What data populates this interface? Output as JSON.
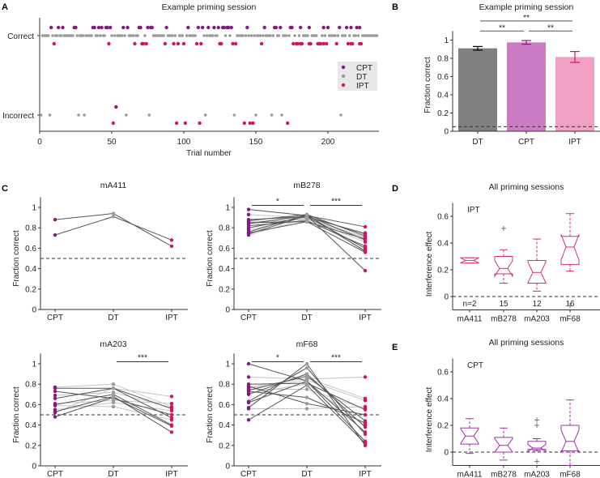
{
  "colors": {
    "CPT": "#86197f",
    "DT": "#9b9b9b",
    "IPT": "#d3145f",
    "bar_DT": "#808080",
    "bar_CPT": "#cc7cc4",
    "bar_IPT": "#f0a0c2",
    "box_IPT": "#d2336d",
    "box_CPT": "#9b33a3",
    "line_dark": "#555555",
    "line_light": "#c4c4c4"
  },
  "panel_labels": [
    "A",
    "B",
    "C",
    "D",
    "E"
  ],
  "chart_data": [
    {
      "panel": "A",
      "type": "scatter",
      "title": "Example priming session",
      "xlabel": "Trial number",
      "xlim": [
        0,
        234
      ],
      "xticks": [
        0,
        50,
        100,
        150,
        200
      ],
      "yticks": [
        "Correct",
        "Incorrect"
      ],
      "legend": [
        "CPT",
        "DT",
        "IPT"
      ],
      "legend_position": "right",
      "n_trials": 234,
      "correct": {
        "CPT": [
          8,
          13,
          16,
          24,
          25,
          37,
          38,
          41,
          43,
          46,
          47,
          49,
          58,
          61,
          69,
          70,
          75,
          77,
          78,
          88,
          103,
          110,
          113,
          117,
          121,
          124,
          127,
          128,
          130,
          131,
          133,
          144,
          156,
          163,
          164,
          167,
          174,
          175,
          181,
          187,
          197,
          200,
          208,
          213,
          216,
          220,
          222
        ],
        "IPT": [
          10,
          48,
          66,
          71,
          72,
          74,
          87,
          93,
          96,
          100,
          109,
          112,
          125,
          126,
          134,
          136,
          154,
          176,
          178,
          179,
          181,
          182,
          187,
          188,
          193,
          194,
          195,
          197,
          199,
          206,
          214,
          216,
          217,
          222,
          223
        ],
        "DT": "all remaining trials"
      },
      "incorrect": {
        "CPT": [
          53
        ],
        "DT": [
          1,
          7,
          27,
          31,
          60,
          76,
          115,
          135,
          150,
          161,
          168,
          209
        ],
        "IPT": [
          51,
          95,
          101,
          111,
          142,
          146,
          148,
          172
        ]
      }
    },
    {
      "panel": "B",
      "type": "bar",
      "title": "Example priming session",
      "ylabel": "Fraction correct",
      "ylim": [
        0,
        1.1
      ],
      "yticks": [
        0,
        0.2,
        0.4,
        0.6,
        0.8,
        1
      ],
      "categories": [
        "DT",
        "CPT",
        "IPT"
      ],
      "values": [
        0.91,
        0.975,
        0.815
      ],
      "errors": [
        0.02,
        0.02,
        0.06
      ],
      "chance_line": 0.05,
      "significance": [
        {
          "pair": [
            "DT",
            "IPT"
          ],
          "label": "**",
          "level": 1.21
        },
        {
          "pair": [
            "DT",
            "CPT"
          ],
          "label": "**",
          "level": 1.1
        },
        {
          "pair": [
            "CPT",
            "IPT"
          ],
          "label": "**",
          "level": 1.1
        }
      ]
    },
    {
      "panel": "C",
      "type": "line",
      "ylabel": "Fraction correct",
      "ylim": [
        0,
        1.1
      ],
      "yticks": [
        0,
        0.2,
        0.4,
        0.6,
        0.8,
        1
      ],
      "categories": [
        "CPT",
        "DT",
        "IPT"
      ],
      "chance_line": 0.5,
      "subplots": [
        {
          "title": "mA411",
          "significance": [],
          "CPT": [
            0.88,
            0.73
          ],
          "DT": [
            0.94,
            0.91
          ],
          "IPT": [
            0.62,
            0.68
          ],
          "dark": [
            true,
            true
          ]
        },
        {
          "title": "mB278",
          "significance": [
            {
              "pair": [
                "CPT",
                "DT"
              ],
              "label": "*",
              "level": 1.02
            },
            {
              "pair": [
                "DT",
                "IPT"
              ],
              "label": "***",
              "level": 1.02
            }
          ],
          "CPT": [
            0.98,
            0.93,
            0.88,
            0.87,
            0.86,
            0.85,
            0.84,
            0.84,
            0.82,
            0.8,
            0.78,
            0.76,
            0.75,
            0.74,
            0.73
          ],
          "DT": [
            0.92,
            0.9,
            0.91,
            0.93,
            0.88,
            0.86,
            0.92,
            0.89,
            0.87,
            0.91,
            0.9,
            0.93,
            0.86,
            0.92,
            0.89
          ],
          "IPT": [
            0.81,
            0.75,
            0.74,
            0.72,
            0.7,
            0.69,
            0.68,
            0.66,
            0.62,
            0.6,
            0.58,
            0.57,
            0.56,
            0.38,
            0.71
          ],
          "dark": [
            true,
            false,
            true,
            true,
            false,
            true,
            true,
            false,
            true,
            true,
            false,
            true,
            true,
            true,
            false
          ]
        },
        {
          "title": "mA203",
          "significance": [
            {
              "pair": [
                "DT",
                "IPT"
              ],
              "label": "***",
              "level": 1.02
            }
          ],
          "CPT": [
            0.77,
            0.76,
            0.73,
            0.69,
            0.66,
            0.61,
            0.6,
            0.59,
            0.55,
            0.53,
            0.52,
            0.48
          ],
          "DT": [
            0.8,
            0.76,
            0.66,
            0.72,
            0.76,
            0.64,
            0.7,
            0.58,
            0.62,
            0.68,
            0.76,
            0.67
          ],
          "IPT": [
            0.58,
            0.47,
            0.5,
            0.57,
            0.56,
            0.61,
            0.4,
            0.45,
            0.54,
            0.33,
            0.68,
            0.39
          ],
          "dark": [
            false,
            true,
            true,
            false,
            true,
            false,
            true,
            false,
            false,
            true,
            false,
            true
          ]
        },
        {
          "title": "mF68",
          "significance": [
            {
              "pair": [
                "CPT",
                "DT"
              ],
              "label": "*",
              "level": 1.02
            },
            {
              "pair": [
                "DT",
                "IPT"
              ],
              "label": "***",
              "level": 1.02
            }
          ],
          "CPT": [
            1.0,
            0.87,
            0.8,
            0.78,
            0.76,
            0.75,
            0.74,
            0.73,
            0.71,
            0.7,
            0.63,
            0.62,
            0.57,
            0.56,
            0.45,
            0.77
          ],
          "DT": [
            0.83,
            0.85,
            0.81,
            0.61,
            0.84,
            0.75,
            0.88,
            0.67,
            0.8,
            0.9,
            0.96,
            0.83,
            1.0,
            0.56,
            0.79,
            0.86
          ],
          "IPT": [
            0.33,
            0.87,
            0.55,
            0.5,
            0.64,
            0.56,
            0.44,
            0.42,
            0.4,
            0.38,
            0.31,
            0.24,
            0.2,
            0.58,
            0.22,
            0.66
          ],
          "dark": [
            true,
            false,
            true,
            true,
            false,
            false,
            true,
            true,
            false,
            true,
            true,
            true,
            true,
            false,
            true,
            false
          ]
        }
      ]
    },
    {
      "panel": "D",
      "type": "box",
      "title": "All priming sessions",
      "label": "IPT",
      "ylabel": "Interference effect",
      "ylim": [
        -0.1,
        0.7
      ],
      "yticks": [
        0,
        0.2,
        0.4,
        0.6
      ],
      "zero_line": 0,
      "categories": [
        "mA411",
        "mB278",
        "mA203",
        "mF68"
      ],
      "n_labels": [
        "n=2",
        "15",
        "12",
        "16"
      ],
      "boxes": [
        {
          "q1": 0.25,
          "median": 0.27,
          "q3": 0.29,
          "whisker_low": 0.25,
          "whisker_high": 0.29,
          "outliers": []
        },
        {
          "q1": 0.17,
          "median": 0.21,
          "q3": 0.3,
          "whisker_low": 0.1,
          "whisker_high": 0.35,
          "outliers": [
            0.51
          ]
        },
        {
          "q1": 0.1,
          "median": 0.18,
          "q3": 0.27,
          "whisker_low": 0.04,
          "whisker_high": 0.43,
          "outliers": []
        },
        {
          "q1": 0.24,
          "median": 0.37,
          "q3": 0.45,
          "whisker_low": 0.19,
          "whisker_high": 0.62,
          "outliers": [
            -0.07
          ]
        }
      ]
    },
    {
      "panel": "E",
      "type": "box",
      "title": "All priming sessions",
      "label": "CPT",
      "ylabel": "Interference effect",
      "ylim": [
        -0.1,
        0.7
      ],
      "yticks": [
        0,
        0.2,
        0.4,
        0.6
      ],
      "zero_line": 0,
      "categories": [
        "mA411",
        "mB278",
        "mA203",
        "mF68"
      ],
      "boxes": [
        {
          "q1": 0.06,
          "median": 0.12,
          "q3": 0.18,
          "whisker_low": -0.01,
          "whisker_high": 0.25,
          "outliers": []
        },
        {
          "q1": 0.0,
          "median": 0.05,
          "q3": 0.11,
          "whisker_low": -0.06,
          "whisker_high": 0.18,
          "outliers": []
        },
        {
          "q1": 0.02,
          "median": 0.03,
          "q3": 0.08,
          "whisker_low": 0.01,
          "whisker_high": 0.1,
          "outliers": [
            0.24,
            0.2,
            -0.07
          ]
        },
        {
          "q1": 0.01,
          "median": 0.08,
          "q3": 0.2,
          "whisker_low": -0.1,
          "whisker_high": 0.39,
          "outliers": []
        }
      ]
    }
  ]
}
